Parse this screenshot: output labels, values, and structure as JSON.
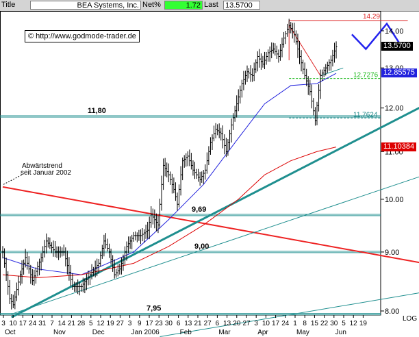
{
  "header": {
    "title_label": "Title",
    "title": "BEA Systems, Inc.",
    "net_label": "Net%",
    "net_value": "1.72",
    "last_label": "Last",
    "last_value": "13.5700"
  },
  "watermark": "© http://www.godmode-trader.de",
  "chart_data": {
    "type": "candlestick",
    "title": "BEA Systems, Inc.",
    "y_scale": "log",
    "ylim": [
      7.8,
      14.5
    ],
    "y_ticks": [
      "14.00",
      "13.00",
      "12.00",
      "11.00",
      "10.00",
      "9.00",
      "8.00"
    ],
    "y_tick_values": [
      14,
      13,
      12,
      11,
      10,
      9,
      8
    ],
    "y_axis_label": "LOG",
    "x_day_labels": [
      "3",
      "10",
      "17",
      "24",
      "31",
      "7",
      "14",
      "21",
      "28",
      "5",
      "12",
      "19",
      "27",
      "3",
      "9",
      "17",
      "23",
      "30",
      "6",
      "13",
      "21",
      "27",
      "6",
      "13",
      "20",
      "27",
      "3",
      "10",
      "17",
      "24",
      "1",
      "8",
      "15",
      "22",
      "30",
      "5",
      "12",
      "19"
    ],
    "x_month_labels": [
      {
        "label": "Oct",
        "at": 0
      },
      {
        "label": "Nov",
        "at": 5
      },
      {
        "label": "Dec",
        "at": 9
      },
      {
        "label": "Jan 2006",
        "at": 13
      },
      {
        "label": "Feb",
        "at": 18
      },
      {
        "label": "Mar",
        "at": 22
      },
      {
        "label": "Apr",
        "at": 26
      },
      {
        "label": "May",
        "at": 30
      },
      {
        "label": "Jun",
        "at": 34
      }
    ],
    "price_anchors": [
      [
        0,
        9.0
      ],
      [
        4,
        8.2
      ],
      [
        6,
        8.1
      ],
      [
        10,
        8.6
      ],
      [
        13,
        8.9
      ],
      [
        17,
        8.5
      ],
      [
        22,
        8.9
      ],
      [
        25,
        9.2
      ],
      [
        30,
        9.0
      ],
      [
        35,
        9.0
      ],
      [
        40,
        8.4
      ],
      [
        45,
        8.4
      ],
      [
        50,
        8.6
      ],
      [
        55,
        8.8
      ],
      [
        58,
        9.2
      ],
      [
        61,
        9.0
      ],
      [
        64,
        8.6
      ],
      [
        67,
        8.7
      ],
      [
        71,
        9.1
      ],
      [
        75,
        9.3
      ],
      [
        79,
        9.3
      ],
      [
        83,
        9.4
      ],
      [
        85,
        9.7
      ],
      [
        87,
        9.6
      ],
      [
        89,
        9.5
      ],
      [
        92,
        10.7
      ],
      [
        95,
        10.5
      ],
      [
        98,
        10.2
      ],
      [
        100,
        9.9
      ],
      [
        103,
        10.8
      ],
      [
        106,
        10.9
      ],
      [
        109,
        10.6
      ],
      [
        113,
        10.4
      ],
      [
        116,
        10.6
      ],
      [
        119,
        11.2
      ],
      [
        122,
        11.5
      ],
      [
        125,
        11.4
      ],
      [
        128,
        11.0
      ],
      [
        131,
        11.6
      ],
      [
        134,
        12.1
      ],
      [
        137,
        12.6
      ],
      [
        140,
        12.9
      ],
      [
        143,
        12.8
      ],
      [
        146,
        13.3
      ],
      [
        149,
        13.1
      ],
      [
        152,
        13.4
      ],
      [
        155,
        13.5
      ],
      [
        158,
        13.3
      ],
      [
        161,
        13.8
      ],
      [
        164,
        14.15
      ],
      [
        167,
        13.9
      ],
      [
        170,
        13.3
      ],
      [
        173,
        12.8
      ],
      [
        176,
        12.4
      ],
      [
        179,
        11.7
      ],
      [
        182,
        12.8
      ],
      [
        185,
        13.0
      ],
      [
        188,
        13.2
      ],
      [
        191,
        13.57
      ]
    ],
    "moving_averages": [
      {
        "color": "#2222dd",
        "points": [
          [
            0,
            8.9
          ],
          [
            20,
            8.7
          ],
          [
            45,
            8.6
          ],
          [
            75,
            9.0
          ],
          [
            95,
            9.6
          ],
          [
            115,
            10.3
          ],
          [
            135,
            11.3
          ],
          [
            150,
            12.1
          ],
          [
            165,
            12.55
          ],
          [
            180,
            12.6
          ],
          [
            191,
            12.86
          ]
        ],
        "last_value": "12.85575"
      },
      {
        "color": "#dd0000",
        "points": [
          [
            0,
            8.6
          ],
          [
            20,
            8.55
          ],
          [
            45,
            8.6
          ],
          [
            75,
            8.8
          ],
          [
            95,
            9.1
          ],
          [
            115,
            9.5
          ],
          [
            135,
            10.0
          ],
          [
            150,
            10.5
          ],
          [
            165,
            10.8
          ],
          [
            180,
            11.0
          ],
          [
            191,
            11.1
          ]
        ],
        "last_value": "11.10384"
      }
    ],
    "horizontal_levels": [
      {
        "value": 11.8,
        "label": "11,80"
      },
      {
        "value": 9.69,
        "label": "9,69"
      },
      {
        "value": 9.0,
        "label": "9,00"
      },
      {
        "value": 7.95,
        "label": "7,95"
      }
    ],
    "dashed_levels": [
      {
        "value": 12.7276,
        "label": "12.7276",
        "color": "#22bb22"
      },
      {
        "value": 11.7624,
        "label": "11.7624",
        "color": "#228888"
      }
    ],
    "downtrend": {
      "label_line1": "Abwärtstrend",
      "label_line2": "seit Januar 2002",
      "from": [
        0,
        10.25
      ],
      "to": [
        250,
        8.75
      ]
    },
    "uptrends": [
      {
        "from": [
          5,
          7.9
        ],
        "to": [
          250,
          12.25
        ],
        "width": 3
      },
      {
        "from": [
          5,
          7.95
        ],
        "to": [
          250,
          10.6
        ],
        "width": 1
      },
      {
        "from": [
          90,
          7.6
        ],
        "to": [
          250,
          8.35
        ],
        "width": 1
      }
    ],
    "resistance_line": {
      "value": 14.29,
      "label": "14.29",
      "from_index": 164,
      "to_index": 232
    },
    "triangle_line": {
      "from": [
        164,
        14.15
      ],
      "to": [
        182,
        12.8
      ]
    },
    "projection_zigzag": [
      [
        200,
        13.9
      ],
      [
        208,
        13.5
      ],
      [
        220,
        14.2
      ],
      [
        228,
        13.6
      ]
    ],
    "last_price_tag": "13.5700"
  }
}
